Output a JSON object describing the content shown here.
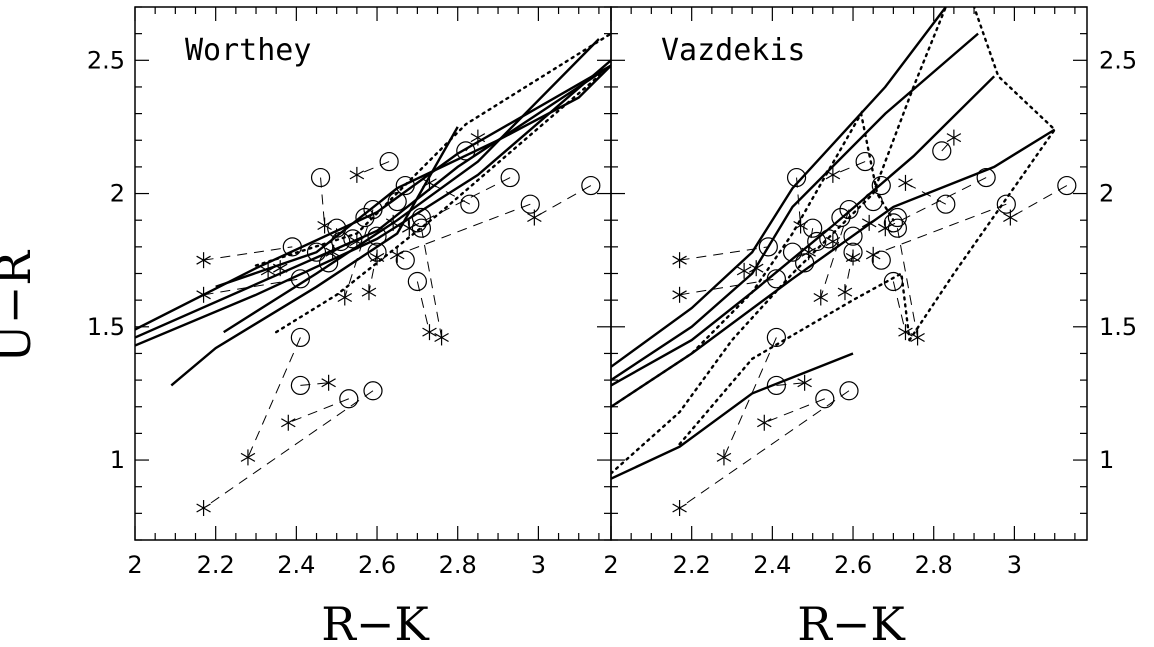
{
  "chart_data": {
    "type": "scatter",
    "panels": [
      {
        "title": "Worthey",
        "xlabel": "R−K",
        "ylabel": "U−R",
        "xlim": [
          2.0,
          3.18
        ],
        "ylim": [
          0.7,
          2.7
        ],
        "xticks": [
          "2",
          "2.2",
          "2.4",
          "2.6",
          "2.8",
          "3"
        ],
        "yticks": [
          "1",
          "1.5",
          "2",
          "2.5"
        ],
        "model_lines_solid": [
          [
            [
              2.0,
              1.43
            ],
            [
              2.3,
              1.62
            ],
            [
              2.6,
              1.83
            ],
            [
              2.85,
              2.07
            ],
            [
              3.18,
              2.5
            ]
          ],
          [
            [
              2.0,
              1.46
            ],
            [
              2.3,
              1.66
            ],
            [
              2.6,
              1.86
            ],
            [
              2.8,
              2.1
            ],
            [
              3.18,
              2.48
            ]
          ],
          [
            [
              2.0,
              1.49
            ],
            [
              2.3,
              1.72
            ],
            [
              2.6,
              1.93
            ],
            [
              2.8,
              2.15
            ],
            [
              3.18,
              2.48
            ]
          ],
          [
            [
              2.2,
              1.65
            ],
            [
              2.45,
              1.78
            ],
            [
              2.65,
              2.02
            ],
            [
              2.9,
              2.2
            ],
            [
              3.1,
              2.36
            ],
            [
              3.18,
              2.48
            ]
          ],
          [
            [
              2.22,
              1.48
            ],
            [
              2.45,
              1.7
            ],
            [
              2.65,
              1.9
            ],
            [
              2.85,
              2.12
            ],
            [
              3.15,
              2.58
            ]
          ],
          [
            [
              2.09,
              1.28
            ],
            [
              2.2,
              1.42
            ],
            [
              2.45,
              1.65
            ],
            [
              2.65,
              1.85
            ],
            [
              2.8,
              2.25
            ]
          ]
        ],
        "model_lines_dotted": [
          [
            [
              2.3,
              1.73
            ],
            [
              2.55,
              1.85
            ],
            [
              2.82,
              2.26
            ],
            [
              3.18,
              2.6
            ]
          ],
          [
            [
              2.35,
              1.48
            ],
            [
              2.5,
              1.62
            ],
            [
              2.75,
              1.92
            ],
            [
              3.18,
              2.48
            ]
          ]
        ]
      },
      {
        "title": "Vazdekis",
        "xlabel": "R−K",
        "ylabel": "U−R",
        "xlim": [
          2.0,
          3.18
        ],
        "ylim": [
          0.7,
          2.7
        ],
        "xticks": [
          "2",
          "2.2",
          "2.4",
          "2.6",
          "2.8",
          "3"
        ],
        "yticks": [
          "1",
          "1.5",
          "2",
          "2.5"
        ],
        "model_lines_solid": [
          [
            [
              2.0,
              1.35
            ],
            [
              2.2,
              1.57
            ],
            [
              2.35,
              1.78
            ],
            [
              2.45,
              2.02
            ],
            [
              2.68,
              2.4
            ],
            [
              2.83,
              2.7
            ]
          ],
          [
            [
              2.0,
              1.3
            ],
            [
              2.2,
              1.5
            ],
            [
              2.35,
              1.7
            ],
            [
              2.45,
              1.95
            ],
            [
              2.68,
              2.3
            ],
            [
              2.91,
              2.6
            ]
          ],
          [
            [
              2.0,
              1.28
            ],
            [
              2.2,
              1.45
            ],
            [
              2.35,
              1.63
            ],
            [
              2.55,
              1.88
            ],
            [
              2.75,
              2.14
            ],
            [
              2.95,
              2.44
            ]
          ],
          [
            [
              2.0,
              1.2
            ],
            [
              2.2,
              1.4
            ],
            [
              2.45,
              1.68
            ],
            [
              2.7,
              1.95
            ],
            [
              2.95,
              2.1
            ],
            [
              3.1,
              2.24
            ]
          ],
          [
            [
              2.0,
              0.93
            ],
            [
              2.17,
              1.05
            ],
            [
              2.35,
              1.25
            ],
            [
              2.6,
              1.4
            ]
          ]
        ],
        "model_lines_dotted": [
          [
            [
              2.0,
              0.95
            ],
            [
              2.17,
              1.18
            ],
            [
              2.3,
              1.45
            ],
            [
              2.45,
              1.7
            ],
            [
              2.65,
              2.0
            ],
            [
              2.75,
              2.4
            ],
            [
              2.83,
              2.7
            ]
          ],
          [
            [
              2.0,
              1.2
            ],
            [
              2.2,
              1.4
            ],
            [
              2.35,
              1.63
            ],
            [
              2.45,
              1.85
            ],
            [
              2.62,
              2.3
            ],
            [
              2.66,
              2.0
            ],
            [
              2.7,
              1.9
            ]
          ],
          [
            [
              2.17,
              1.06
            ],
            [
              2.35,
              1.38
            ],
            [
              2.6,
              1.6
            ],
            [
              2.72,
              1.7
            ],
            [
              2.74,
              1.45
            ]
          ],
          [
            [
              2.74,
              1.45
            ],
            [
              2.85,
              1.7
            ],
            [
              3.1,
              2.24
            ],
            [
              2.96,
              2.44
            ],
            [
              2.9,
              2.7
            ]
          ]
        ]
      }
    ],
    "data_points": {
      "circles": [
        [
          2.46,
          2.06
        ],
        [
          2.63,
          2.12
        ],
        [
          2.57,
          1.91
        ],
        [
          2.65,
          1.97
        ],
        [
          2.59,
          1.94
        ],
        [
          2.5,
          1.87
        ],
        [
          2.54,
          1.83
        ],
        [
          2.39,
          1.8
        ],
        [
          2.45,
          1.78
        ],
        [
          2.41,
          1.68
        ],
        [
          2.48,
          1.74
        ],
        [
          2.51,
          1.82
        ],
        [
          2.6,
          1.84
        ],
        [
          2.6,
          1.78
        ],
        [
          2.67,
          1.75
        ],
        [
          2.7,
          1.67
        ],
        [
          2.71,
          1.87
        ],
        [
          2.71,
          1.91
        ],
        [
          2.83,
          1.96
        ],
        [
          2.93,
          2.06
        ],
        [
          2.98,
          1.96
        ],
        [
          3.13,
          2.03
        ],
        [
          2.82,
          2.16
        ],
        [
          2.67,
          2.03
        ],
        [
          2.7,
          1.89
        ],
        [
          2.41,
          1.46
        ],
        [
          2.41,
          1.28
        ],
        [
          2.53,
          1.23
        ],
        [
          2.59,
          1.26
        ]
      ],
      "asterisks": [
        [
          2.17,
          1.75
        ],
        [
          2.17,
          1.62
        ],
        [
          2.33,
          1.71
        ],
        [
          2.36,
          1.72
        ],
        [
          2.47,
          1.88
        ],
        [
          2.55,
          2.07
        ],
        [
          2.49,
          1.78
        ],
        [
          2.52,
          1.61
        ],
        [
          2.58,
          1.63
        ],
        [
          2.6,
          1.76
        ],
        [
          2.55,
          1.82
        ],
        [
          2.64,
          1.89
        ],
        [
          2.68,
          1.87
        ],
        [
          2.65,
          1.77
        ],
        [
          2.73,
          2.04
        ],
        [
          2.73,
          1.48
        ],
        [
          2.76,
          1.46
        ],
        [
          2.85,
          2.21
        ],
        [
          2.99,
          1.91
        ],
        [
          2.17,
          0.82
        ],
        [
          2.28,
          1.01
        ],
        [
          2.38,
          1.14
        ],
        [
          2.48,
          1.29
        ]
      ],
      "dashed_links": [
        [
          [
            2.17,
            1.75
          ],
          [
            2.39,
            1.8
          ]
        ],
        [
          [
            2.17,
            1.62
          ],
          [
            2.41,
            1.68
          ]
        ],
        [
          [
            2.46,
            2.06
          ],
          [
            2.47,
            1.88
          ]
        ],
        [
          [
            2.63,
            2.12
          ],
          [
            2.55,
            2.07
          ]
        ],
        [
          [
            2.5,
            1.87
          ],
          [
            2.49,
            1.78
          ]
        ],
        [
          [
            2.59,
            1.94
          ],
          [
            2.52,
            1.61
          ]
        ],
        [
          [
            2.6,
            1.78
          ],
          [
            2.58,
            1.63
          ]
        ],
        [
          [
            2.7,
            1.67
          ],
          [
            2.73,
            1.48
          ]
        ],
        [
          [
            2.71,
            1.87
          ],
          [
            2.76,
            1.46
          ]
        ],
        [
          [
            2.83,
            1.96
          ],
          [
            2.73,
            2.04
          ]
        ],
        [
          [
            2.93,
            2.06
          ],
          [
            2.68,
            1.87
          ]
        ],
        [
          [
            2.98,
            1.96
          ],
          [
            2.65,
            1.77
          ]
        ],
        [
          [
            3.13,
            2.03
          ],
          [
            2.99,
            1.91
          ]
        ],
        [
          [
            2.82,
            2.16
          ],
          [
            2.85,
            2.21
          ]
        ],
        [
          [
            2.41,
            1.46
          ],
          [
            2.28,
            1.01
          ]
        ],
        [
          [
            2.41,
            1.28
          ],
          [
            2.48,
            1.29
          ]
        ],
        [
          [
            2.53,
            1.23
          ],
          [
            2.38,
            1.14
          ]
        ],
        [
          [
            2.59,
            1.26
          ],
          [
            2.17,
            0.82
          ]
        ]
      ]
    }
  }
}
